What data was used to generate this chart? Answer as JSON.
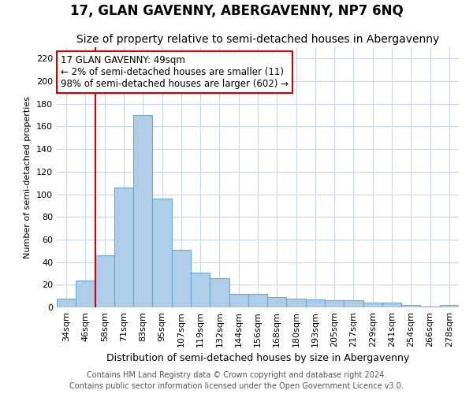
{
  "title": "17, GLAN GAVENNY, ABERGAVENNY, NP7 6NQ",
  "subtitle": "Size of property relative to semi-detached houses in Abergavenny",
  "xlabel": "Distribution of semi-detached houses by size in Abergavenny",
  "ylabel": "Number of semi-detached properties",
  "categories": [
    "34sqm",
    "46sqm",
    "58sqm",
    "71sqm",
    "83sqm",
    "95sqm",
    "107sqm",
    "119sqm",
    "132sqm",
    "144sqm",
    "156sqm",
    "168sqm",
    "180sqm",
    "193sqm",
    "205sqm",
    "217sqm",
    "229sqm",
    "241sqm",
    "254sqm",
    "266sqm",
    "278sqm"
  ],
  "values": [
    8,
    24,
    46,
    106,
    170,
    96,
    51,
    31,
    26,
    12,
    12,
    9,
    8,
    7,
    6,
    6,
    4,
    4,
    2,
    1,
    2
  ],
  "bar_color": "#aecde8",
  "bar_edge_color": "#6aaad4",
  "highlight_line_color": "#cc0000",
  "highlight_bar_index": 1,
  "annotation_text": "17 GLAN GAVENNY: 49sqm\n← 2% of semi-detached houses are smaller (11)\n98% of semi-detached houses are larger (602) →",
  "annotation_box_color": "#ffffff",
  "annotation_box_edge_color": "#cc0000",
  "ylim": [
    0,
    230
  ],
  "yticks": [
    0,
    20,
    40,
    60,
    80,
    100,
    120,
    140,
    160,
    180,
    200,
    220
  ],
  "footer1": "Contains HM Land Registry data © Crown copyright and database right 2024.",
  "footer2": "Contains public sector information licensed under the Open Government Licence v3.0.",
  "bg_color": "#ffffff",
  "grid_color": "#c8d8e8",
  "title_fontsize": 12,
  "subtitle_fontsize": 10,
  "xlabel_fontsize": 9,
  "ylabel_fontsize": 8,
  "tick_fontsize": 8,
  "annotation_fontsize": 8.5,
  "footer_fontsize": 7
}
